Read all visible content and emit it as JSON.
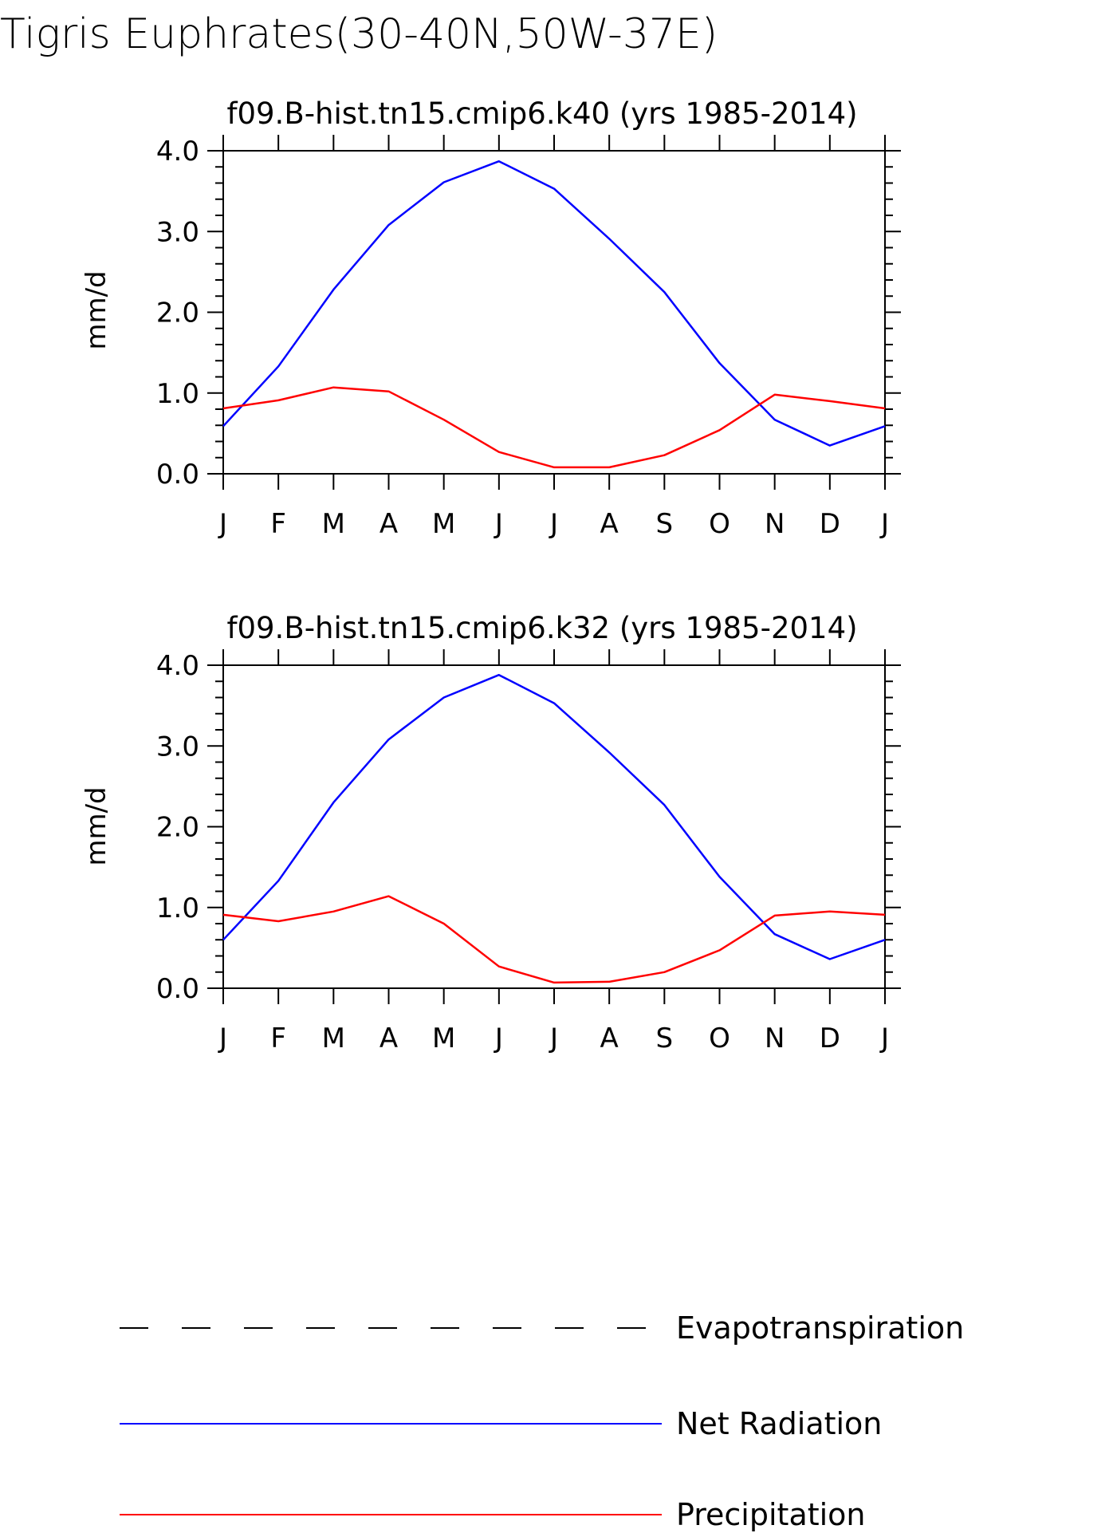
{
  "title": "Tigris Euphrates(30-40N,50W-37E)",
  "colors": {
    "net_radiation": "#0000ff",
    "precipitation": "#ff0000",
    "evapotranspiration": "#000000"
  },
  "chart_data": [
    {
      "type": "line",
      "title": "f09.B-hist.tn15.cmip6.k40 (yrs 1985-2014)",
      "ylabel": "mm/d",
      "xlabel": "",
      "ylim": [
        0,
        4
      ],
      "yticks": [
        "0.0",
        "1.0",
        "2.0",
        "3.0",
        "4.0"
      ],
      "categories": [
        "J",
        "F",
        "M",
        "A",
        "M",
        "J",
        "J",
        "A",
        "S",
        "O",
        "N",
        "D",
        "J"
      ],
      "series": [
        {
          "name": "Net Radiation",
          "values": [
            0.59,
            1.33,
            2.28,
            3.08,
            3.61,
            3.87,
            3.53,
            2.91,
            2.25,
            1.37,
            0.67,
            0.35,
            0.59
          ]
        },
        {
          "name": "Precipitation",
          "values": [
            0.81,
            0.91,
            1.07,
            1.02,
            0.67,
            0.27,
            0.08,
            0.08,
            0.23,
            0.54,
            0.98,
            0.9,
            0.81
          ]
        }
      ]
    },
    {
      "type": "line",
      "title": "f09.B-hist.tn15.cmip6.k32 (yrs 1985-2014)",
      "ylabel": "mm/d",
      "xlabel": "",
      "ylim": [
        0,
        4
      ],
      "yticks": [
        "0.0",
        "1.0",
        "2.0",
        "3.0",
        "4.0"
      ],
      "categories": [
        "J",
        "F",
        "M",
        "A",
        "M",
        "J",
        "J",
        "A",
        "S",
        "O",
        "N",
        "D",
        "J"
      ],
      "series": [
        {
          "name": "Net Radiation",
          "values": [
            0.6,
            1.33,
            2.3,
            3.08,
            3.6,
            3.88,
            3.53,
            2.92,
            2.27,
            1.38,
            0.67,
            0.36,
            0.6
          ]
        },
        {
          "name": "Precipitation",
          "values": [
            0.91,
            0.83,
            0.95,
            1.14,
            0.8,
            0.27,
            0.07,
            0.08,
            0.2,
            0.47,
            0.9,
            0.95,
            0.91
          ]
        }
      ]
    }
  ],
  "legend": [
    {
      "label": "Evapotranspiration",
      "style": "dashed",
      "color": "#000000"
    },
    {
      "label": "Net Radiation",
      "style": "solid",
      "color": "#0000ff"
    },
    {
      "label": "Precipitation",
      "style": "solid",
      "color": "#ff0000"
    }
  ]
}
